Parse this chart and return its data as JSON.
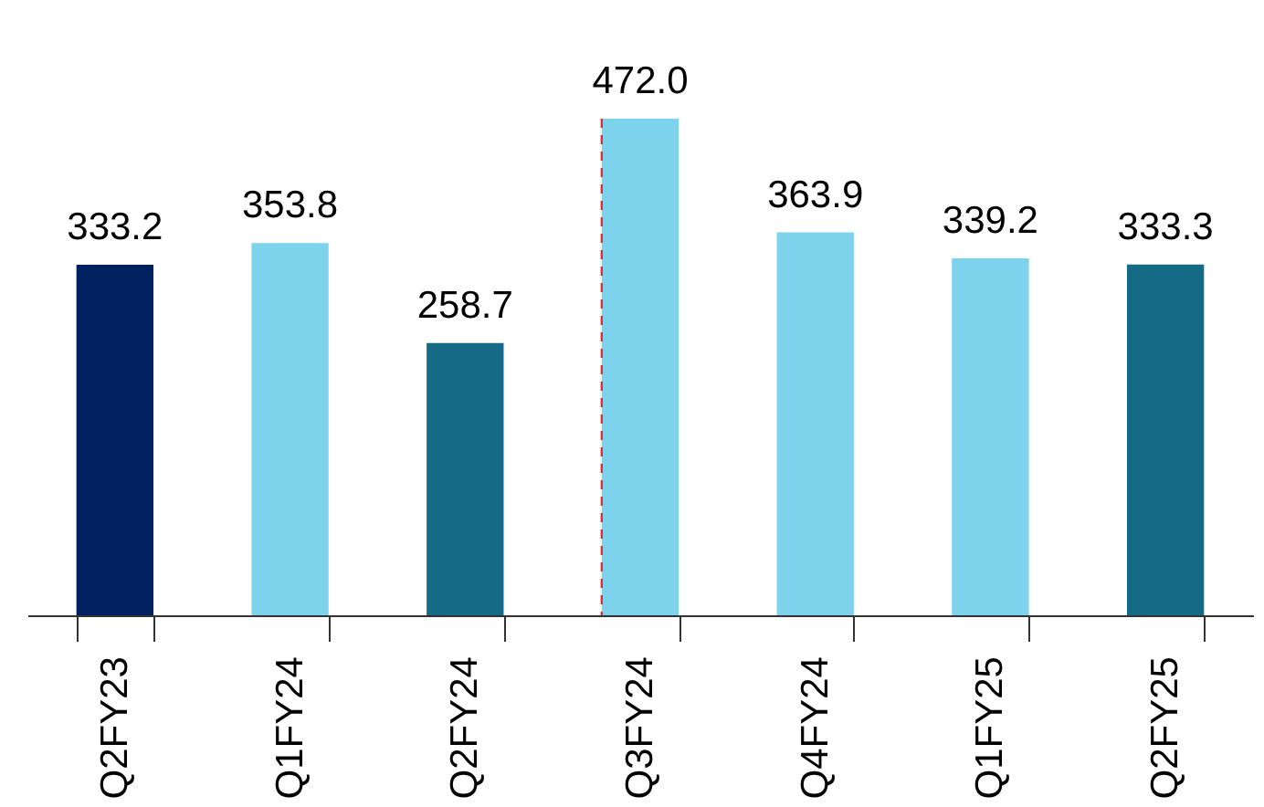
{
  "chart_data": {
    "type": "bar",
    "categories": [
      "Q2FY23",
      "Q1FY24",
      "Q2FY24",
      "Q3FY24",
      "Q4FY24",
      "Q1FY25",
      "Q2FY25"
    ],
    "values": [
      333.2,
      353.8,
      258.7,
      472.0,
      363.9,
      339.2,
      333.3
    ],
    "colors": [
      "#002060",
      "#7dd3ec",
      "#156b85",
      "#7dd3ec",
      "#7dd3ec",
      "#7dd3ec",
      "#156b85"
    ],
    "value_labels": [
      "333.2",
      "353.8",
      "258.7",
      "472.0",
      "363.9",
      "339.2",
      "333.3"
    ],
    "ylim": [
      0,
      472
    ],
    "tick_labels": "x",
    "grid": false,
    "ref_lines": [
      {
        "axis": "x",
        "value": "Q3FY24",
        "color": "#e03030",
        "line_style": "dashed"
      }
    ]
  }
}
